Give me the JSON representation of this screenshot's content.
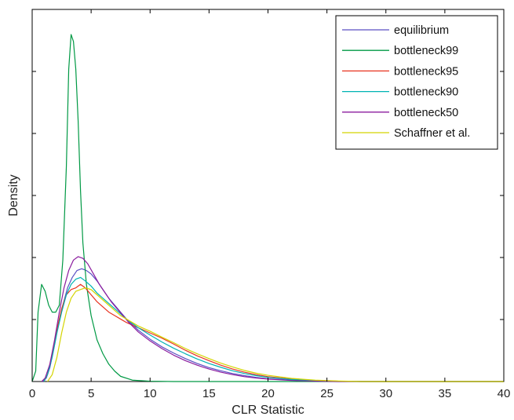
{
  "chart_data": {
    "type": "line",
    "xlabel": "CLR Statistic",
    "ylabel": "Density",
    "xlim": [
      0,
      40
    ],
    "ylim": [
      0,
      1
    ],
    "xticks": [
      0,
      5,
      10,
      15,
      20,
      25,
      30,
      35,
      40
    ],
    "yticks_shown": false,
    "grid": false,
    "legend_position": "top-right",
    "series": [
      {
        "name": "equilibrium",
        "color": "#5a4fc4",
        "points": [
          [
            0.9,
            0
          ],
          [
            1.2,
            0.01
          ],
          [
            1.5,
            0.04
          ],
          [
            1.8,
            0.09
          ],
          [
            2.2,
            0.16
          ],
          [
            2.6,
            0.22
          ],
          [
            3.0,
            0.27
          ],
          [
            3.4,
            0.3
          ],
          [
            3.8,
            0.32
          ],
          [
            4.2,
            0.325
          ],
          [
            4.6,
            0.32
          ],
          [
            5.0,
            0.31
          ],
          [
            5.5,
            0.29
          ],
          [
            6.0,
            0.265
          ],
          [
            6.5,
            0.24
          ],
          [
            7.0,
            0.22
          ],
          [
            7.5,
            0.2
          ],
          [
            8.0,
            0.18
          ],
          [
            9.0,
            0.148
          ],
          [
            10.0,
            0.122
          ],
          [
            11.0,
            0.1
          ],
          [
            12.0,
            0.082
          ],
          [
            13.0,
            0.066
          ],
          [
            14.0,
            0.052
          ],
          [
            15.0,
            0.04
          ],
          [
            16.0,
            0.031
          ],
          [
            17.0,
            0.023
          ],
          [
            18.0,
            0.017
          ],
          [
            19.0,
            0.012
          ],
          [
            20.0,
            0.008
          ],
          [
            22.0,
            0.004
          ],
          [
            24.0,
            0.0015
          ],
          [
            26.0,
            0.0005
          ],
          [
            28.0,
            0
          ],
          [
            40.0,
            0
          ]
        ]
      },
      {
        "name": "bottleneck99",
        "color": "#009944",
        "points": [
          [
            0,
            0
          ],
          [
            0.3,
            0.03
          ],
          [
            0.5,
            0.2
          ],
          [
            0.8,
            0.28
          ],
          [
            1.1,
            0.26
          ],
          [
            1.4,
            0.22
          ],
          [
            1.7,
            0.2
          ],
          [
            2.0,
            0.2
          ],
          [
            2.3,
            0.22
          ],
          [
            2.6,
            0.35
          ],
          [
            2.9,
            0.62
          ],
          [
            3.1,
            0.9
          ],
          [
            3.3,
            1.0
          ],
          [
            3.5,
            0.98
          ],
          [
            3.7,
            0.9
          ],
          [
            3.9,
            0.75
          ],
          [
            4.1,
            0.55
          ],
          [
            4.3,
            0.4
          ],
          [
            4.6,
            0.28
          ],
          [
            5.0,
            0.19
          ],
          [
            5.5,
            0.12
          ],
          [
            6.0,
            0.08
          ],
          [
            6.5,
            0.05
          ],
          [
            7.0,
            0.03
          ],
          [
            7.5,
            0.015
          ],
          [
            8.5,
            0.004
          ],
          [
            10.0,
            0.001
          ],
          [
            12.0,
            0
          ],
          [
            40.0,
            0
          ]
        ]
      },
      {
        "name": "bottleneck95",
        "color": "#e8321f",
        "points": [
          [
            1.0,
            0
          ],
          [
            1.3,
            0.02
          ],
          [
            1.7,
            0.08
          ],
          [
            2.1,
            0.15
          ],
          [
            2.5,
            0.21
          ],
          [
            2.9,
            0.25
          ],
          [
            3.3,
            0.265
          ],
          [
            3.7,
            0.27
          ],
          [
            4.1,
            0.28
          ],
          [
            4.5,
            0.27
          ],
          [
            5.0,
            0.25
          ],
          [
            5.5,
            0.23
          ],
          [
            6.0,
            0.215
          ],
          [
            6.5,
            0.2
          ],
          [
            7.0,
            0.19
          ],
          [
            7.5,
            0.18
          ],
          [
            8.0,
            0.17
          ],
          [
            9.0,
            0.155
          ],
          [
            10.0,
            0.14
          ],
          [
            11.0,
            0.125
          ],
          [
            12.0,
            0.108
          ],
          [
            13.0,
            0.09
          ],
          [
            14.0,
            0.074
          ],
          [
            15.0,
            0.06
          ],
          [
            16.0,
            0.047
          ],
          [
            17.0,
            0.036
          ],
          [
            18.0,
            0.027
          ],
          [
            19.0,
            0.02
          ],
          [
            20.0,
            0.014
          ],
          [
            22.0,
            0.007
          ],
          [
            24.0,
            0.003
          ],
          [
            26.0,
            0.001
          ],
          [
            28.0,
            0
          ],
          [
            40.0,
            0
          ]
        ]
      },
      {
        "name": "bottleneck90",
        "color": "#00b3b3",
        "points": [
          [
            1.0,
            0
          ],
          [
            1.3,
            0.02
          ],
          [
            1.7,
            0.07
          ],
          [
            2.1,
            0.14
          ],
          [
            2.5,
            0.2
          ],
          [
            2.9,
            0.25
          ],
          [
            3.3,
            0.28
          ],
          [
            3.7,
            0.295
          ],
          [
            4.1,
            0.3
          ],
          [
            4.5,
            0.29
          ],
          [
            5.0,
            0.275
          ],
          [
            5.5,
            0.255
          ],
          [
            6.0,
            0.24
          ],
          [
            6.5,
            0.225
          ],
          [
            7.0,
            0.21
          ],
          [
            7.5,
            0.195
          ],
          [
            8.0,
            0.18
          ],
          [
            9.0,
            0.155
          ],
          [
            10.0,
            0.134
          ],
          [
            11.0,
            0.114
          ],
          [
            12.0,
            0.096
          ],
          [
            13.0,
            0.08
          ],
          [
            14.0,
            0.065
          ],
          [
            15.0,
            0.052
          ],
          [
            16.0,
            0.041
          ],
          [
            17.0,
            0.031
          ],
          [
            18.0,
            0.023
          ],
          [
            19.0,
            0.017
          ],
          [
            20.0,
            0.012
          ],
          [
            22.0,
            0.006
          ],
          [
            24.0,
            0.0025
          ],
          [
            26.0,
            0.001
          ],
          [
            28.0,
            0
          ],
          [
            40.0,
            0
          ]
        ]
      },
      {
        "name": "bottleneck50",
        "color": "#8b1c9e",
        "points": [
          [
            0.8,
            0
          ],
          [
            1.1,
            0.01
          ],
          [
            1.5,
            0.05
          ],
          [
            1.9,
            0.12
          ],
          [
            2.3,
            0.2
          ],
          [
            2.7,
            0.27
          ],
          [
            3.1,
            0.32
          ],
          [
            3.5,
            0.35
          ],
          [
            3.9,
            0.36
          ],
          [
            4.3,
            0.355
          ],
          [
            4.7,
            0.34
          ],
          [
            5.2,
            0.31
          ],
          [
            5.7,
            0.28
          ],
          [
            6.2,
            0.255
          ],
          [
            6.7,
            0.23
          ],
          [
            7.2,
            0.21
          ],
          [
            7.7,
            0.19
          ],
          [
            8.2,
            0.17
          ],
          [
            9.0,
            0.143
          ],
          [
            10.0,
            0.117
          ],
          [
            11.0,
            0.095
          ],
          [
            12.0,
            0.076
          ],
          [
            13.0,
            0.06
          ],
          [
            14.0,
            0.047
          ],
          [
            15.0,
            0.036
          ],
          [
            16.0,
            0.027
          ],
          [
            17.0,
            0.02
          ],
          [
            18.0,
            0.014
          ],
          [
            19.0,
            0.01
          ],
          [
            20.0,
            0.007
          ],
          [
            22.0,
            0.003
          ],
          [
            24.0,
            0.001
          ],
          [
            26.0,
            0
          ],
          [
            40.0,
            0
          ]
        ]
      },
      {
        "name": "Schaffner et al.",
        "color": "#d4d400",
        "points": [
          [
            1.3,
            0
          ],
          [
            1.7,
            0.02
          ],
          [
            2.1,
            0.07
          ],
          [
            2.5,
            0.14
          ],
          [
            2.9,
            0.2
          ],
          [
            3.3,
            0.24
          ],
          [
            3.7,
            0.26
          ],
          [
            4.1,
            0.265
          ],
          [
            4.5,
            0.27
          ],
          [
            5.0,
            0.265
          ],
          [
            5.5,
            0.25
          ],
          [
            6.0,
            0.235
          ],
          [
            6.5,
            0.22
          ],
          [
            7.0,
            0.205
          ],
          [
            7.5,
            0.19
          ],
          [
            8.0,
            0.18
          ],
          [
            9.0,
            0.16
          ],
          [
            10.0,
            0.145
          ],
          [
            11.0,
            0.128
          ],
          [
            12.0,
            0.112
          ],
          [
            13.0,
            0.095
          ],
          [
            14.0,
            0.08
          ],
          [
            15.0,
            0.066
          ],
          [
            16.0,
            0.053
          ],
          [
            17.0,
            0.042
          ],
          [
            18.0,
            0.032
          ],
          [
            19.0,
            0.024
          ],
          [
            20.0,
            0.018
          ],
          [
            22.0,
            0.009
          ],
          [
            24.0,
            0.004
          ],
          [
            26.0,
            0.0015
          ],
          [
            28.0,
            0
          ],
          [
            40.0,
            0
          ]
        ]
      }
    ]
  }
}
